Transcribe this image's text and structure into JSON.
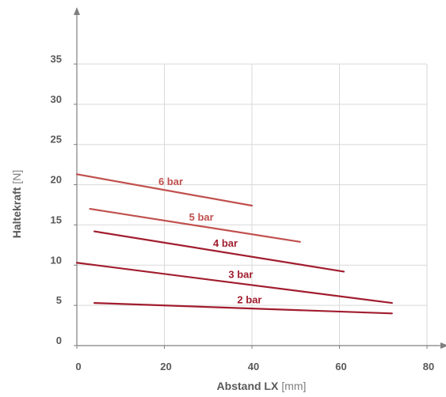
{
  "chart_data": {
    "type": "line",
    "xlabel": "Abstand LX",
    "xunit": "[mm]",
    "ylabel": "Haltekraft",
    "yunit": "[N]",
    "xlim": [
      0,
      80
    ],
    "ylim": [
      0,
      35
    ],
    "xticks": [
      0,
      20,
      40,
      60,
      80
    ],
    "yticks": [
      0,
      5,
      10,
      15,
      20,
      25,
      30,
      35
    ],
    "grid": true,
    "series": [
      {
        "name": "6 bar",
        "color": "#c0504d",
        "x": [
          0,
          40
        ],
        "y": [
          21.3,
          17.4
        ]
      },
      {
        "name": "5 bar",
        "color": "#c0504d",
        "x": [
          3,
          51
        ],
        "y": [
          17.0,
          12.9
        ]
      },
      {
        "name": "4 bar",
        "color": "#a11d2e",
        "x": [
          4,
          61
        ],
        "y": [
          14.2,
          9.2
        ]
      },
      {
        "name": "3 bar",
        "color": "#a11d2e",
        "x": [
          0,
          72
        ],
        "y": [
          10.3,
          5.3
        ]
      },
      {
        "name": "2 bar",
        "color": "#a11d2e",
        "x": [
          4,
          72
        ],
        "y": [
          5.3,
          4.0
        ]
      }
    ]
  }
}
